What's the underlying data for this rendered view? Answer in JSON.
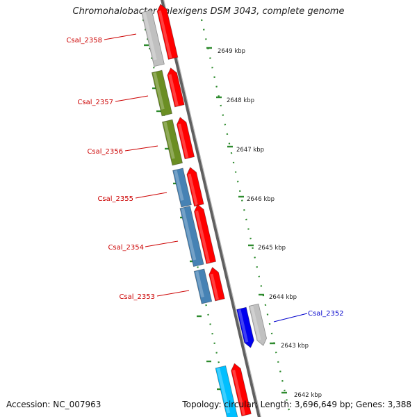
{
  "title": "Chromohalobacter salexigens DSM 3043, complete genome",
  "footer": {
    "accession_text": "Accession: NC_007963",
    "stats_text": "Topology: circular; Length: 3,696,649 bp; Genes: 3,388"
  },
  "colors": {
    "backbone": "#8a8a8a",
    "dots": "#2e8b2e",
    "label_minus": "#cc0000",
    "label_plus": "#0000cc",
    "cds_forward": "#ff0000",
    "cds_olive": "#6b8e23",
    "cds_steel": "#4682b4",
    "cds_gray": "#c0c0c0",
    "cds_blue": "#0000ee",
    "cds_cyan": "#00bfff"
  },
  "kbp_labels": [
    "2649 kbp",
    "2648 kbp",
    "2647 kbp",
    "2646 kbp",
    "2645 kbp",
    "2644 kbp",
    "2643 kbp",
    "2642 kbp"
  ],
  "gene_labels": [
    {
      "text": "Csal_2358",
      "strand": "minus"
    },
    {
      "text": "Csal_2357",
      "strand": "minus"
    },
    {
      "text": "Csal_2356",
      "strand": "minus"
    },
    {
      "text": "Csal_2355",
      "strand": "minus"
    },
    {
      "text": "Csal_2354",
      "strand": "minus"
    },
    {
      "text": "Csal_2353",
      "strand": "minus"
    },
    {
      "text": "Csal_2352",
      "strand": "plus"
    }
  ]
}
